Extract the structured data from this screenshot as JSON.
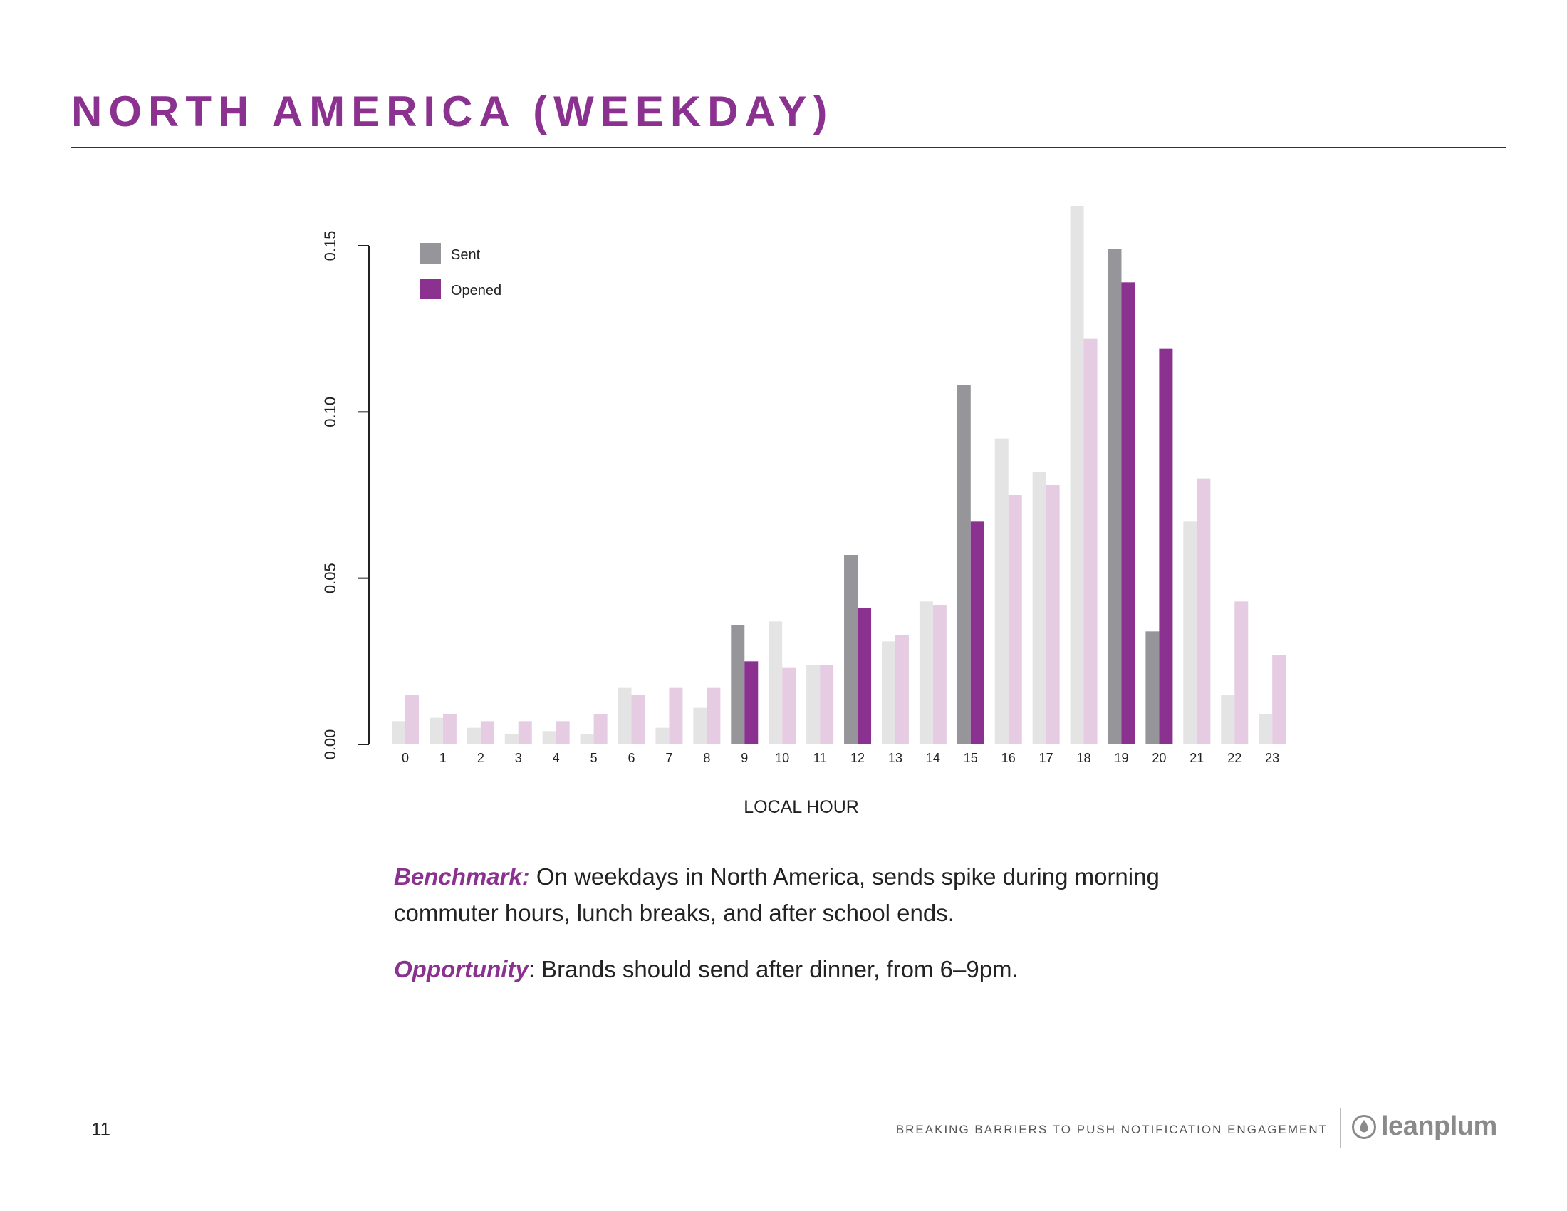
{
  "header": {
    "title": "NORTH AMERICA (WEEKDAY)"
  },
  "chart_data": {
    "type": "bar",
    "xlabel": "LOCAL HOUR",
    "ylabel": "",
    "ylim": [
      0,
      0.15
    ],
    "yticks": [
      "0.00",
      "0.05",
      "0.10",
      "0.15"
    ],
    "categories": [
      "0",
      "1",
      "2",
      "3",
      "4",
      "5",
      "6",
      "7",
      "8",
      "9",
      "10",
      "11",
      "12",
      "13",
      "14",
      "15",
      "16",
      "17",
      "18",
      "19",
      "20",
      "21",
      "22",
      "23"
    ],
    "series": [
      {
        "name": "Sent",
        "values": [
          0.007,
          0.008,
          0.005,
          0.003,
          0.004,
          0.003,
          0.017,
          0.005,
          0.011,
          0.036,
          0.037,
          0.024,
          0.057,
          0.031,
          0.043,
          0.108,
          0.092,
          0.082,
          0.162,
          0.149,
          0.034,
          0.067,
          0.015,
          0.009
        ]
      },
      {
        "name": "Opened",
        "values": [
          0.015,
          0.009,
          0.007,
          0.007,
          0.007,
          0.009,
          0.015,
          0.017,
          0.017,
          0.025,
          0.023,
          0.024,
          0.041,
          0.033,
          0.042,
          0.067,
          0.075,
          0.078,
          0.122,
          0.139,
          0.119,
          0.08,
          0.043,
          0.027
        ]
      }
    ],
    "highlighted_hours": [
      9,
      12,
      15,
      19,
      20
    ],
    "legend": {
      "position": "top-left",
      "items": [
        "Sent",
        "Opened"
      ]
    },
    "colors": {
      "sent_highlight": "#96969a",
      "sent_muted": "#e4e4e4",
      "opened_highlight": "#8b3190",
      "opened_muted": "#e5cce3"
    }
  },
  "caption": {
    "benchmark_label": "Benchmark:",
    "benchmark_text": " On weekdays in North America, sends spike during morning commuter hours, lunch breaks, and after school ends.",
    "opportunity_label": "Opportunity",
    "opportunity_text": ": Brands should send after dinner, from 6–9pm."
  },
  "footer": {
    "page_number": "11",
    "report_title": "BREAKING BARRIERS TO PUSH NOTIFICATION ENGAGEMENT",
    "brand": "leanplum"
  }
}
